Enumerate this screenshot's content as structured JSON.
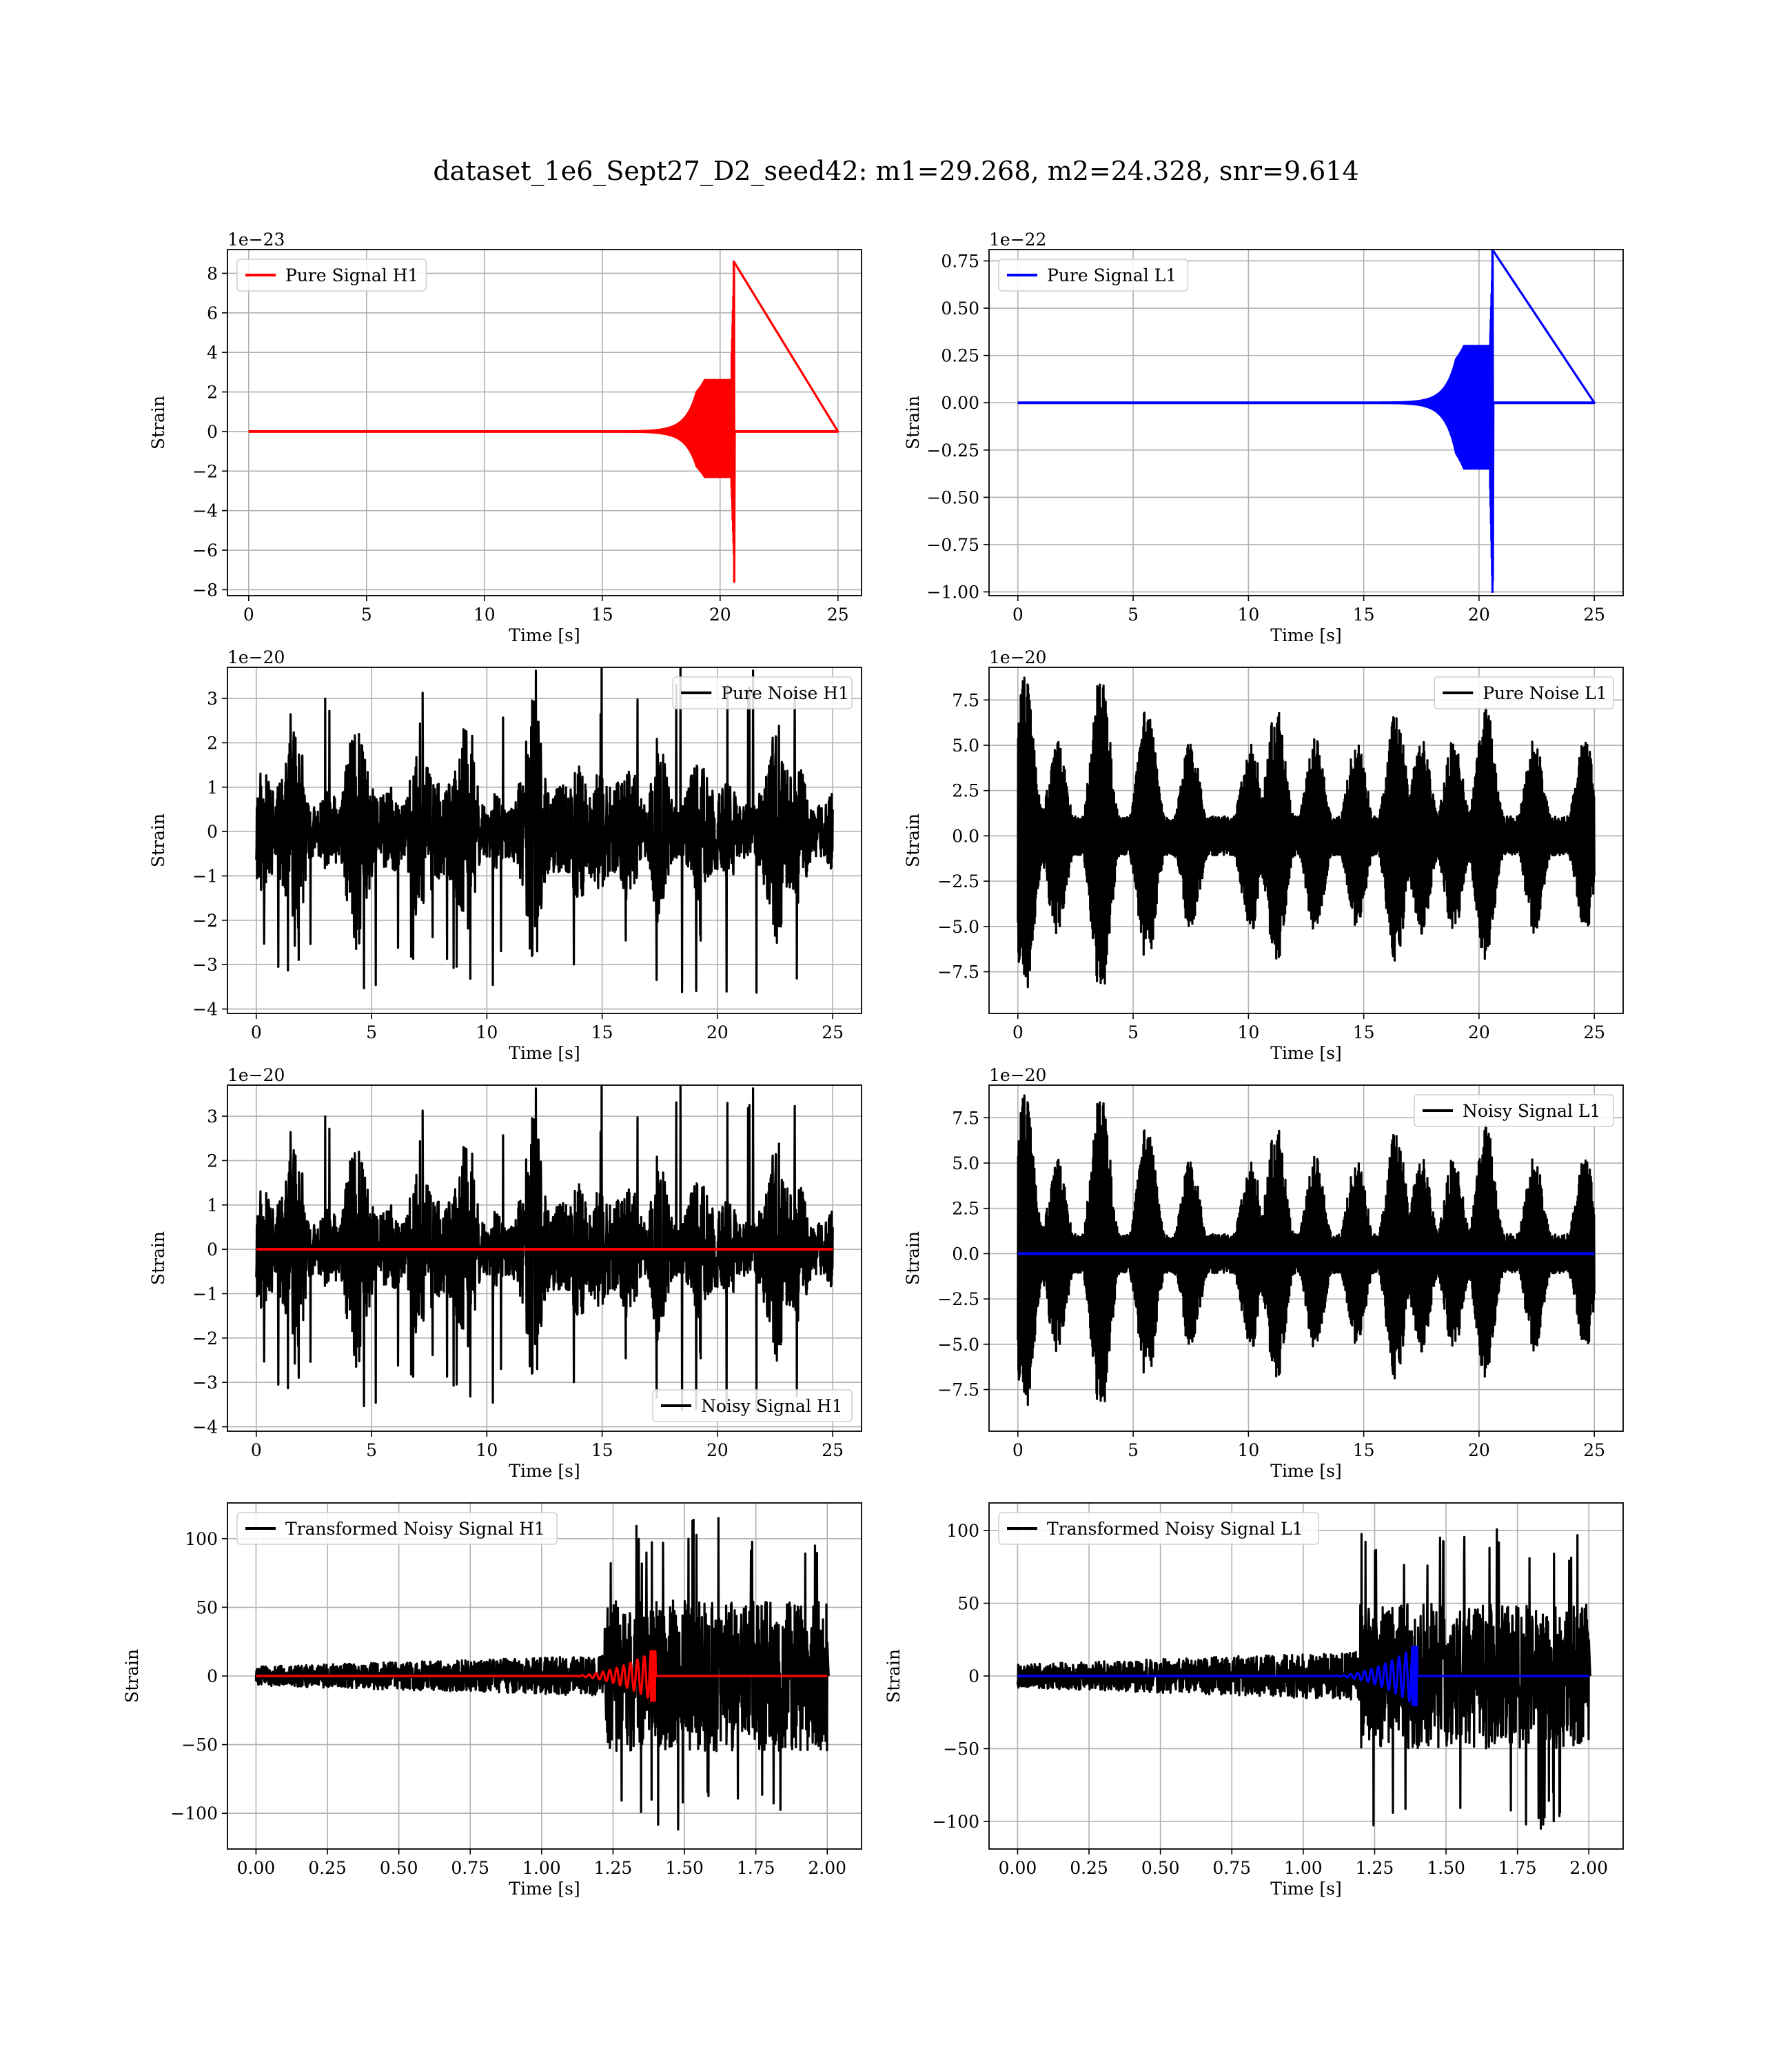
{
  "figure": {
    "title": "dataset_1e6_Sept27_D2_seed42: m1=29.268, m2=24.328, snr=9.614"
  },
  "colors": {
    "h1_signal": "#ff0000",
    "l1_signal": "#0000ff",
    "noise": "#000000",
    "grid": "#b0b0b0"
  },
  "chart_data": [
    {
      "id": "pure-signal-h1",
      "type": "line",
      "title": "",
      "xlabel": "Time [s]",
      "ylabel": "Strain",
      "offset_text": "1e−23",
      "xlim": [
        -0.9,
        26.0
      ],
      "ylim": [
        -8.3,
        9.2
      ],
      "grid": true,
      "xticks": [
        0,
        5,
        10,
        15,
        20,
        25
      ],
      "xtick_labels": [
        "0",
        "5",
        "10",
        "15",
        "20",
        "25"
      ],
      "yticks": [
        -8,
        -6,
        -4,
        -2,
        0,
        2,
        4,
        6,
        8
      ],
      "ytick_labels": [
        "−8",
        "−6",
        "−4",
        "−2",
        "0",
        "2",
        "4",
        "6",
        "8"
      ],
      "legend_position": "top-left",
      "series": [
        {
          "name": "Pure Signal H1",
          "color": "#ff0000",
          "kind": "chirp",
          "x_start": 0,
          "x_end": 25,
          "merger_time": 20.6,
          "peak_pos": 8.6,
          "peak_neg": -7.6,
          "plateau": 2.6
        }
      ]
    },
    {
      "id": "pure-signal-l1",
      "type": "line",
      "title": "",
      "xlabel": "Time [s]",
      "ylabel": "Strain",
      "offset_text": "1e−22",
      "xlim": [
        -1.25,
        26.25
      ],
      "ylim": [
        -1.02,
        0.81
      ],
      "grid": true,
      "xticks": [
        0,
        5,
        10,
        15,
        20,
        25
      ],
      "xtick_labels": [
        "0",
        "5",
        "10",
        "15",
        "20",
        "25"
      ],
      "yticks": [
        -1.0,
        -0.75,
        -0.5,
        -0.25,
        0.0,
        0.25,
        0.5,
        0.75
      ],
      "ytick_labels": [
        "−1.00",
        "−0.75",
        "−0.50",
        "−0.25",
        "0.00",
        "0.25",
        "0.50",
        "0.75"
      ],
      "legend_position": "top-left",
      "series": [
        {
          "name": "Pure Signal L1",
          "color": "#0000ff",
          "kind": "chirp",
          "x_start": 0,
          "x_end": 25,
          "merger_time": 20.6,
          "peak_pos": 0.81,
          "peak_neg": -0.94,
          "plateau": 0.3
        }
      ]
    },
    {
      "id": "pure-noise-h1",
      "type": "line",
      "title": "",
      "xlabel": "Time [s]",
      "ylabel": "Strain",
      "offset_text": "1e−20",
      "xlim": [
        -1.25,
        26.25
      ],
      "ylim": [
        -4.1,
        3.7
      ],
      "grid": true,
      "xticks": [
        0,
        5,
        10,
        15,
        20,
        25
      ],
      "xtick_labels": [
        "0",
        "5",
        "10",
        "15",
        "20",
        "25"
      ],
      "yticks": [
        -4,
        -3,
        -2,
        -1,
        0,
        1,
        2,
        3
      ],
      "ytick_labels": [
        "−4",
        "−3",
        "−2",
        "−1",
        "0",
        "1",
        "2",
        "3"
      ],
      "legend_position": "top-right",
      "series": [
        {
          "name": "Pure Noise H1",
          "color": "#000000",
          "kind": "noise",
          "x_start": 0,
          "x_end": 25,
          "amp": 1.7,
          "peak": 3.8,
          "seed": 11
        }
      ]
    },
    {
      "id": "pure-noise-l1",
      "type": "line",
      "title": "",
      "xlabel": "Time [s]",
      "ylabel": "Strain",
      "offset_text": "1e−20",
      "xlim": [
        -1.25,
        26.25
      ],
      "ylim": [
        -9.8,
        9.3
      ],
      "grid": true,
      "xticks": [
        0,
        5,
        10,
        15,
        20,
        25
      ],
      "xtick_labels": [
        "0",
        "5",
        "10",
        "15",
        "20",
        "25"
      ],
      "yticks": [
        -7.5,
        -5.0,
        -2.5,
        0.0,
        2.5,
        5.0,
        7.5
      ],
      "ytick_labels": [
        "−7.5",
        "−5.0",
        "−2.5",
        "0.0",
        "2.5",
        "5.0",
        "7.5"
      ],
      "legend_position": "top-right",
      "series": [
        {
          "name": "Pure Noise L1",
          "color": "#000000",
          "kind": "noise_l1",
          "x_start": 0,
          "x_end": 25,
          "amp": 5.5,
          "peak": 9.0,
          "seed": 23
        }
      ]
    },
    {
      "id": "noisy-signal-h1",
      "type": "line",
      "title": "",
      "xlabel": "Time [s]",
      "ylabel": "Strain",
      "offset_text": "1e−20",
      "xlim": [
        -1.25,
        26.25
      ],
      "ylim": [
        -4.1,
        3.7
      ],
      "grid": true,
      "xticks": [
        0,
        5,
        10,
        15,
        20,
        25
      ],
      "xtick_labels": [
        "0",
        "5",
        "10",
        "15",
        "20",
        "25"
      ],
      "yticks": [
        -4,
        -3,
        -2,
        -1,
        0,
        1,
        2,
        3
      ],
      "ytick_labels": [
        "−4",
        "−3",
        "−2",
        "−1",
        "0",
        "1",
        "2",
        "3"
      ],
      "legend_position": "bottom-right",
      "series": [
        {
          "name": "Noisy Signal H1",
          "color": "#000000",
          "kind": "noise",
          "x_start": 0,
          "x_end": 25,
          "amp": 1.7,
          "peak": 3.8,
          "seed": 11
        },
        {
          "name": "",
          "color": "#ff0000",
          "kind": "flat",
          "x_start": 0,
          "x_end": 25,
          "value": 0
        }
      ]
    },
    {
      "id": "noisy-signal-l1",
      "type": "line",
      "title": "",
      "xlabel": "Time [s]",
      "ylabel": "Strain",
      "offset_text": "1e−20",
      "xlim": [
        -1.25,
        26.25
      ],
      "ylim": [
        -9.8,
        9.3
      ],
      "grid": true,
      "xticks": [
        0,
        5,
        10,
        15,
        20,
        25
      ],
      "xtick_labels": [
        "0",
        "5",
        "10",
        "15",
        "20",
        "25"
      ],
      "yticks": [
        -7.5,
        -5.0,
        -2.5,
        0.0,
        2.5,
        5.0,
        7.5
      ],
      "ytick_labels": [
        "−7.5",
        "−5.0",
        "−2.5",
        "0.0",
        "2.5",
        "5.0",
        "7.5"
      ],
      "legend_position": "top-right",
      "series": [
        {
          "name": "Noisy Signal L1",
          "color": "#000000",
          "kind": "noise_l1",
          "x_start": 0,
          "x_end": 25,
          "amp": 5.5,
          "peak": 9.0,
          "seed": 23
        },
        {
          "name": "",
          "color": "#0000ff",
          "kind": "flat",
          "x_start": 0,
          "x_end": 25,
          "value": 0
        }
      ]
    },
    {
      "id": "transformed-h1",
      "type": "line",
      "title": "",
      "xlabel": "Time [s]",
      "ylabel": "Strain",
      "offset_text": "",
      "xlim": [
        -0.1,
        2.12
      ],
      "ylim": [
        -126,
        126
      ],
      "grid": true,
      "xticks": [
        0,
        0.25,
        0.5,
        0.75,
        1.0,
        1.25,
        1.5,
        1.75,
        2.0
      ],
      "xtick_labels": [
        "0.00",
        "0.25",
        "0.50",
        "0.75",
        "1.00",
        "1.25",
        "1.50",
        "1.75",
        "2.00"
      ],
      "yticks": [
        -100,
        -50,
        0,
        50,
        100
      ],
      "ytick_labels": [
        "−100",
        "−50",
        "0",
        "50",
        "100"
      ],
      "legend_position": "top-left",
      "series": [
        {
          "name": "Transformed Noisy Signal H1",
          "color": "#000000",
          "kind": "transformed",
          "x_start": 0,
          "x_end": 2.0,
          "low_amp": 7,
          "high_amp": 55,
          "peak": 115,
          "step_time": 1.22,
          "seed": 5
        },
        {
          "name": "",
          "color": "#ff0000",
          "kind": "tchirp",
          "x_start": 0,
          "x_end": 2.0,
          "merger_time": 1.39,
          "peak": 18
        }
      ]
    },
    {
      "id": "transformed-l1",
      "type": "line",
      "title": "",
      "xlabel": "Time [s]",
      "ylabel": "Strain",
      "offset_text": "",
      "xlim": [
        -0.1,
        2.12
      ],
      "ylim": [
        -119,
        119
      ],
      "grid": true,
      "xticks": [
        0,
        0.25,
        0.5,
        0.75,
        1.0,
        1.25,
        1.5,
        1.75,
        2.0
      ],
      "xtick_labels": [
        "0.00",
        "0.25",
        "0.50",
        "0.75",
        "1.00",
        "1.25",
        "1.50",
        "1.75",
        "2.00"
      ],
      "yticks": [
        -100,
        -50,
        0,
        50,
        100
      ],
      "ytick_labels": [
        "−100",
        "−50",
        "0",
        "50",
        "100"
      ],
      "legend_position": "top-left",
      "series": [
        {
          "name": "Transformed Noisy Signal L1",
          "color": "#000000",
          "kind": "transformed",
          "x_start": 0,
          "x_end": 2.0,
          "low_amp": 8,
          "high_amp": 50,
          "peak": 108,
          "step_time": 1.2,
          "seed": 9
        },
        {
          "name": "",
          "color": "#0000ff",
          "kind": "tchirp",
          "x_start": 0,
          "x_end": 2.0,
          "merger_time": 1.39,
          "peak": 20
        }
      ]
    }
  ]
}
